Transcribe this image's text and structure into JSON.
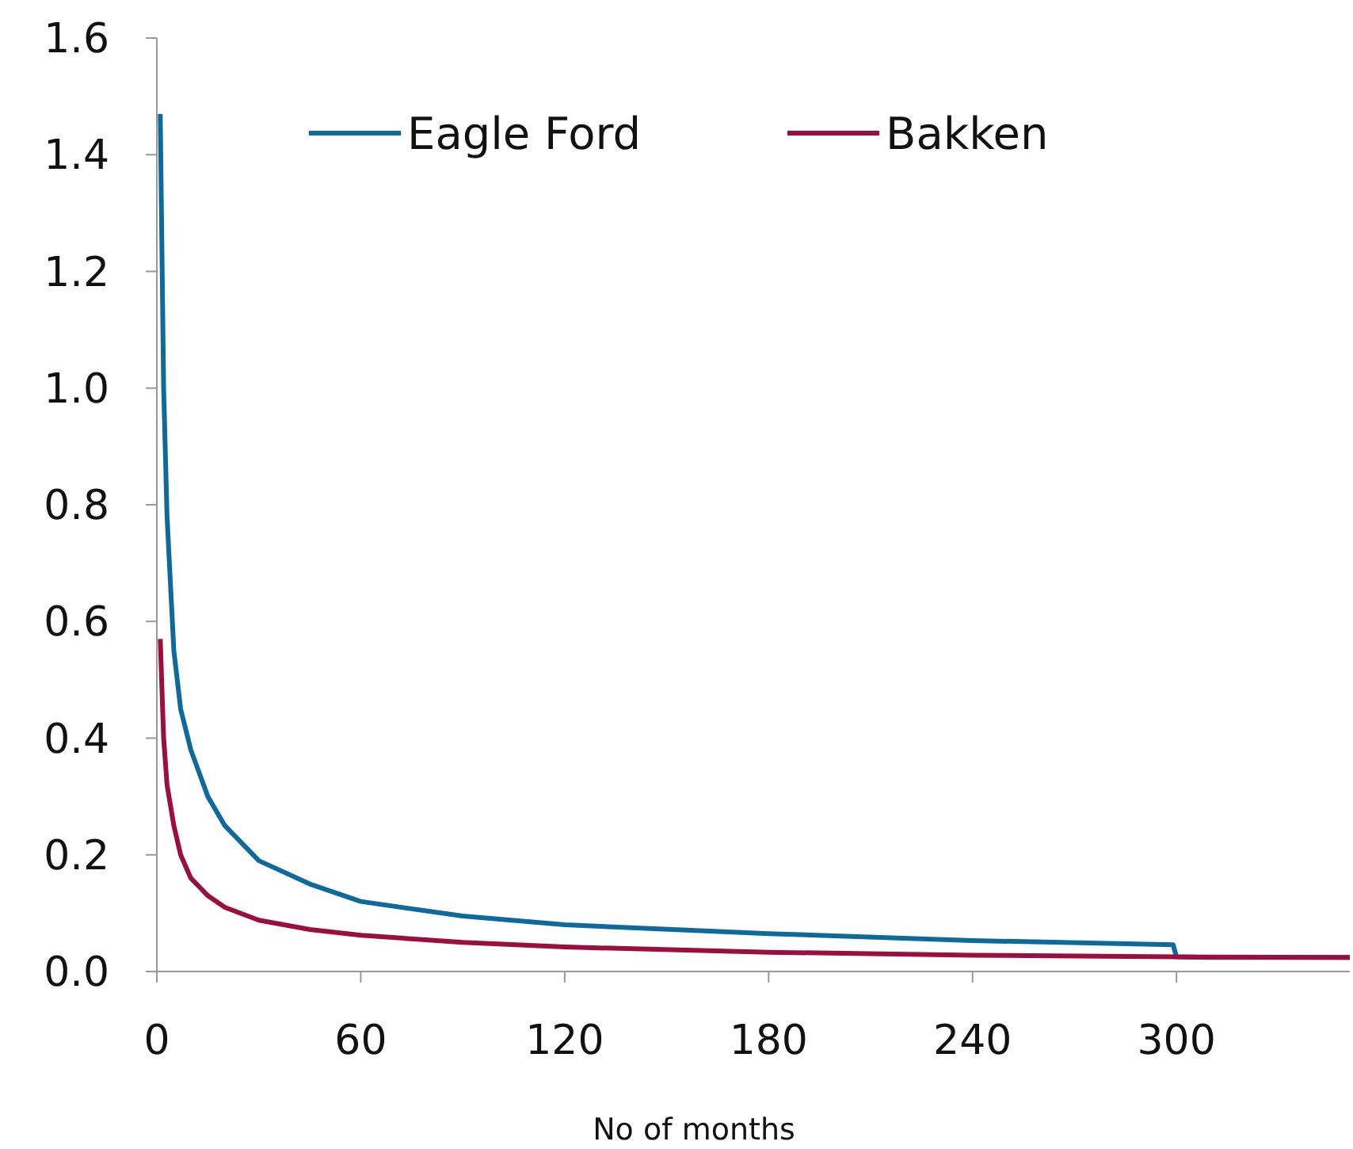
{
  "chart_data": {
    "type": "line",
    "xlabel": "No of months",
    "xlim": [
      0,
      351
    ],
    "xticks": [
      0,
      60,
      120,
      180,
      240,
      300
    ],
    "ylim": [
      0,
      1.6
    ],
    "yticks": [
      {
        "value": 0,
        "label": "0.0"
      },
      {
        "value": 0.2,
        "label": "0.2"
      },
      {
        "value": 0.4,
        "label": "0.4"
      },
      {
        "value": 0.6,
        "label": "0.6"
      },
      {
        "value": 0.8,
        "label": "0.8"
      },
      {
        "value": 1,
        "label": "1.0"
      },
      {
        "value": 1.2,
        "label": "1.2"
      },
      {
        "value": 1.4,
        "label": "1.4"
      },
      {
        "value": 1.6,
        "label": "1.6"
      }
    ],
    "grid": false,
    "legend": "top",
    "marker": "none",
    "line_style": "solid",
    "series": [
      {
        "name": "Eagle Ford",
        "color": "#0e6a9b",
        "x": [
          1,
          2,
          3,
          5,
          7,
          10,
          15,
          20,
          30,
          45,
          60,
          90,
          120,
          180,
          240,
          299,
          300,
          310,
          351
        ],
        "values": [
          1.47,
          1.0,
          0.78,
          0.55,
          0.45,
          0.38,
          0.3,
          0.25,
          0.19,
          0.15,
          0.12,
          0.095,
          0.08,
          0.065,
          0.053,
          0.046,
          0.025,
          0.024,
          0.024
        ]
      },
      {
        "name": "Bakken",
        "color": "#9b0e3f",
        "x": [
          1,
          2,
          3,
          5,
          7,
          10,
          15,
          20,
          30,
          45,
          60,
          90,
          120,
          180,
          240,
          300,
          351
        ],
        "values": [
          0.57,
          0.4,
          0.32,
          0.25,
          0.2,
          0.16,
          0.13,
          0.11,
          0.088,
          0.072,
          0.062,
          0.05,
          0.042,
          0.033,
          0.028,
          0.025,
          0.024
        ]
      }
    ]
  }
}
